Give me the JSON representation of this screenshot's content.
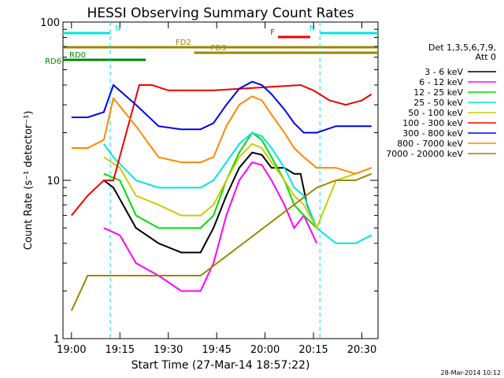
{
  "chart_data": {
    "type": "line",
    "title": "HESSI Observing Summary Count Rates",
    "xlabel": "Start Time (27-Mar-14 18:57:22)",
    "ylabel": "Count Rate (s⁻¹ detector⁻¹)",
    "y_scale": "log",
    "ylim": [
      1,
      100
    ],
    "xlim": [
      "18:57:22",
      "20:35:00"
    ],
    "x_ticks": [
      "19:00",
      "19:15",
      "19:30",
      "19:45",
      "20:00",
      "20:15",
      "20:30"
    ],
    "y_ticks": [
      "1",
      "10",
      "100"
    ],
    "grid": false,
    "legend_title": [
      "Det 1,3,5,6,7,9,",
      "Att 0"
    ],
    "legend_position": "right",
    "timestamp": "28-Mar-2014 10:12",
    "series": [
      {
        "name": "3 - 6 keV",
        "color": "#000000",
        "x": [
          "19:10",
          "19:13",
          "19:20",
          "19:27",
          "19:34",
          "19:40",
          "19:44",
          "19:48",
          "19:52",
          "19:56",
          "19:59",
          "20:02",
          "20:06",
          "20:09",
          "20:11",
          "20:13",
          "20:16"
        ],
        "values": [
          10,
          9,
          5,
          4,
          3.5,
          3.5,
          5,
          8,
          12,
          15,
          14.5,
          12,
          12,
          11,
          11,
          7,
          5
        ]
      },
      {
        "name": "6 - 12 keV",
        "color": "#ff00ff",
        "x": [
          "19:10",
          "19:15",
          "19:20",
          "19:27",
          "19:34",
          "19:40",
          "19:44",
          "19:48",
          "19:52",
          "19:56",
          "19:59",
          "20:02",
          "20:06",
          "20:09",
          "20:12",
          "20:16"
        ],
        "values": [
          5,
          4.5,
          3,
          2.5,
          2,
          2,
          3,
          6,
          10,
          13,
          12.5,
          10,
          7,
          5,
          6,
          4
        ]
      },
      {
        "name": "12 - 25 keV",
        "color": "#00dd00",
        "x": [
          "19:10",
          "19:15",
          "19:20",
          "19:27",
          "19:34",
          "19:40",
          "19:44",
          "19:48",
          "19:52",
          "19:56",
          "19:59",
          "20:02",
          "20:06",
          "20:09",
          "20:12",
          "20:16"
        ],
        "values": [
          11,
          10,
          6,
          5,
          5,
          5,
          6,
          10,
          15,
          20,
          18,
          14,
          10,
          7,
          6,
          5
        ]
      },
      {
        "name": "25 - 50 keV",
        "color": "#00e5e5",
        "x": [
          "19:10",
          "19:13",
          "19:20",
          "19:27",
          "19:34",
          "19:40",
          "19:44",
          "19:48",
          "19:52",
          "19:56",
          "19:59",
          "20:02",
          "20:06",
          "20:09",
          "20:12",
          "20:16",
          "20:22",
          "20:28",
          "20:33"
        ],
        "values": [
          17,
          14,
          10,
          9,
          9,
          9,
          10,
          13,
          17,
          20,
          19,
          16,
          12,
          9,
          8,
          5,
          4,
          4,
          4.5
        ]
      },
      {
        "name": "50 - 100 keV",
        "color": "#cccc00",
        "x": [
          "19:10",
          "19:15",
          "19:20",
          "19:27",
          "19:34",
          "19:40",
          "19:44",
          "19:48",
          "19:52",
          "19:56",
          "19:59",
          "20:02",
          "20:06",
          "20:09",
          "20:12",
          "20:16",
          "20:22",
          "20:28",
          "20:33"
        ],
        "values": [
          14,
          12,
          8,
          7,
          6,
          6,
          7,
          10,
          14,
          17,
          16,
          13,
          10,
          8,
          7,
          5,
          10,
          11,
          12
        ]
      },
      {
        "name": "100 - 300 keV",
        "color": "#ee0000",
        "x": [
          "19:00",
          "19:05",
          "19:10",
          "19:13",
          "19:21",
          "19:25",
          "19:30",
          "19:35",
          "19:40",
          "19:44",
          "20:11",
          "20:15",
          "20:20",
          "20:25",
          "20:30",
          "20:33"
        ],
        "values": [
          6,
          8,
          10,
          10,
          40,
          40,
          37,
          37,
          37,
          37,
          40,
          37,
          32,
          30,
          32,
          35
        ]
      },
      {
        "name": "300 - 800 keV",
        "color": "#0000ee",
        "x": [
          "19:00",
          "19:05",
          "19:10",
          "19:13",
          "19:20",
          "19:27",
          "19:34",
          "19:40",
          "19:44",
          "19:48",
          "19:52",
          "19:56",
          "19:59",
          "20:02",
          "20:06",
          "20:09",
          "20:12",
          "20:16",
          "20:22",
          "20:28",
          "20:33"
        ],
        "values": [
          25,
          25,
          27,
          40,
          30,
          22,
          21,
          21,
          23,
          30,
          38,
          42,
          40,
          35,
          28,
          23,
          20,
          20,
          22,
          22,
          22
        ]
      },
      {
        "name": "800 - 7000 keV",
        "color": "#ff8800",
        "x": [
          "19:00",
          "19:05",
          "19:10",
          "19:13",
          "19:20",
          "19:27",
          "19:34",
          "19:40",
          "19:44",
          "19:48",
          "19:52",
          "19:56",
          "19:59",
          "20:02",
          "20:06",
          "20:09",
          "20:12",
          "20:16",
          "20:22",
          "20:28",
          "20:33"
        ],
        "values": [
          16,
          16,
          18,
          33,
          22,
          14,
          13,
          13,
          14,
          22,
          30,
          34,
          32,
          26,
          20,
          16,
          14,
          12,
          12,
          11,
          12
        ]
      },
      {
        "name": "7000 - 20000 keV",
        "color": "#998800",
        "x": [
          "19:00",
          "19:05",
          "19:10",
          "19:20",
          "19:30",
          "19:40",
          "20:16",
          "20:22",
          "20:28",
          "20:33"
        ],
        "values": [
          1.5,
          2.5,
          2.5,
          2.5,
          2.5,
          2.5,
          9,
          10,
          10,
          11
        ]
      }
    ],
    "annotations": [
      {
        "label": "N",
        "color": "#00e5e5",
        "start": "18:57:22",
        "end": "19:12:00"
      },
      {
        "label": "N",
        "color": "#00e5e5",
        "start": "20:17:00",
        "end": "20:35:00"
      },
      {
        "label": "F",
        "color": "#ee0000",
        "start": "20:04:00",
        "end": "20:14:00"
      },
      {
        "label": "FD2",
        "color": "#998800",
        "start": "18:57:22",
        "end": "20:35:00"
      },
      {
        "label": "FD3",
        "color": "#998800",
        "start": "19:38:00",
        "end": "20:35:00"
      },
      {
        "label": "RD0",
        "color": "#008800",
        "start": "18:57:22",
        "end": "19:23:00"
      },
      {
        "label": "RD6",
        "color": "#008800",
        "start": "18:57:22",
        "end": "18:57:22"
      }
    ]
  }
}
